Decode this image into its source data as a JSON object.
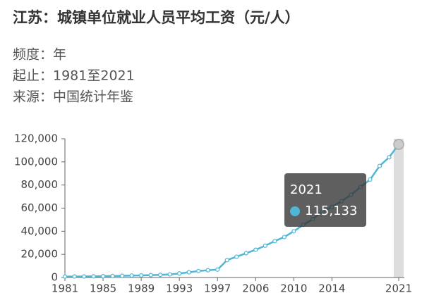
{
  "chart_data": {
    "type": "line",
    "title": "江苏：城镇单位就业人员平均工资（元/人）",
    "subtitle": [
      "频度：年",
      "起止：1981至2021",
      "来源：中国统计年鉴"
    ],
    "categories": [
      "1981",
      null,
      null,
      null,
      "1985",
      null,
      null,
      null,
      "1989",
      null,
      null,
      null,
      "1993",
      null,
      null,
      null,
      "1997",
      null,
      null,
      null,
      "2006",
      null,
      null,
      null,
      "2010",
      null,
      null,
      null,
      "2014",
      null,
      null,
      null,
      null,
      null,
      null,
      "2021"
    ],
    "series": [
      {
        "name": "江苏",
        "color": "#4fb6d3",
        "values": [
          800,
          850,
          900,
          1050,
          1150,
          1300,
          1450,
          1700,
          1850,
          2050,
          2300,
          2700,
          3500,
          4500,
          5600,
          6300,
          6800,
          15000,
          18000,
          21000,
          24000,
          27500,
          31500,
          35000,
          40000,
          45500,
          50600,
          57000,
          61000,
          66000,
          71500,
          78300,
          84700,
          96500,
          104000,
          115133
        ]
      }
    ],
    "ylim": [
      0,
      120000
    ],
    "yticks": [
      0,
      {
        "value": 20000,
        "label": "20,000"
      },
      {
        "value": 40000,
        "label": "40,000"
      },
      {
        "value": 60000,
        "label": "60,000"
      },
      {
        "value": 80000,
        "label": "80,000"
      },
      {
        "value": 100000,
        "label": "100,000"
      },
      {
        "value": 120000,
        "label": "120,000"
      }
    ],
    "grid": false,
    "tooltip": {
      "value_label": "115,133"
    }
  }
}
